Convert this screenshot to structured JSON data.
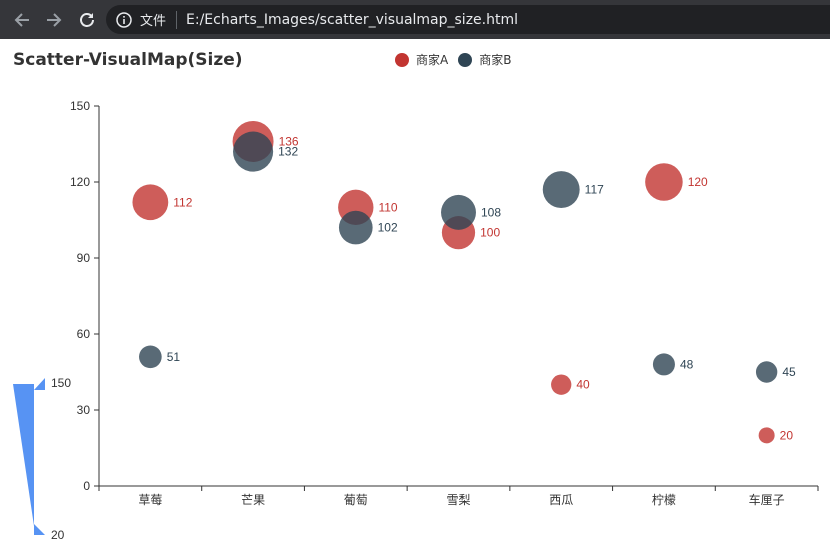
{
  "browser": {
    "site_label": "文件",
    "url": "E:/Echarts_Images/scatter_visualmap_size.html",
    "icons": [
      "back-arrow-icon",
      "forward-arrow-icon",
      "reload-icon",
      "info-icon"
    ]
  },
  "colors": {
    "series_a": "#c23531",
    "series_b": "#2f4554",
    "visualmap": "#5793f3",
    "axis": "#333333"
  },
  "visual_map": {
    "max_label": "150",
    "min_label": "20",
    "min": 20,
    "max": 150
  },
  "chart_data": {
    "type": "scatter",
    "title": "Scatter-VisualMap(Size)",
    "categories": [
      "草莓",
      "芒果",
      "葡萄",
      "雪梨",
      "西瓜",
      "柠檬",
      "车厘子"
    ],
    "series": [
      {
        "name": "商家A",
        "values": [
          112,
          136,
          110,
          100,
          40,
          120,
          20
        ]
      },
      {
        "name": "商家B",
        "values": [
          51,
          132,
          102,
          108,
          117,
          48,
          45
        ]
      }
    ],
    "ylim": [
      0,
      150
    ],
    "yticks": [
      "0",
      "30",
      "60",
      "90",
      "120",
      "150"
    ],
    "legend_position": "top-center",
    "grid": false
  }
}
